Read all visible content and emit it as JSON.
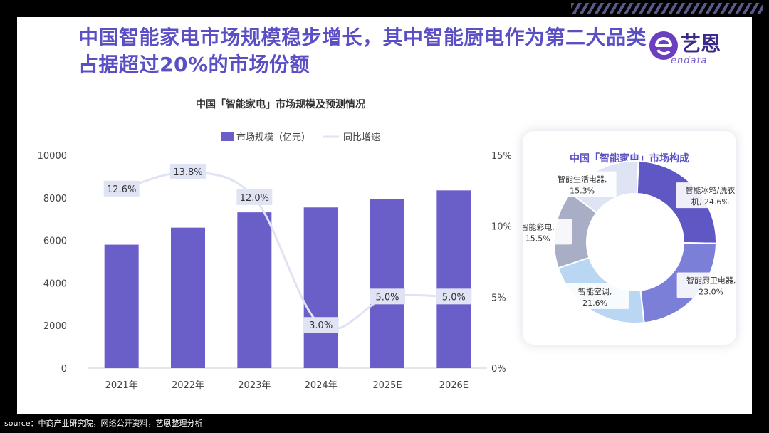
{
  "header": {
    "title": "中国智能家电市场规模稳步增长，其中智能厨电作为第二大品类占据超过20%的市场份额",
    "logo_text": "艺恩",
    "logo_sub": "endata"
  },
  "footer": {
    "source": "source：中商产业研究院，网络公开资料，艺恩整理分析"
  },
  "colors": {
    "bar": "#6a5fc9",
    "line": "#dfe3f3",
    "title": "#5b4fc4"
  },
  "chart_data": [
    {
      "type": "bar",
      "title": "中国「智能家电」市场规模及预测情况",
      "categories": [
        "2021年",
        "2022年",
        "2023年",
        "2024年",
        "2025E",
        "2026E"
      ],
      "legend": [
        "市场规模（亿元）",
        "同比增速"
      ],
      "series": [
        {
          "name": "市场规模（亿元）",
          "type": "bar",
          "values": [
            5800,
            6600,
            7320,
            7550,
            7950,
            8350
          ]
        },
        {
          "name": "同比增速",
          "type": "line",
          "axis": "right",
          "values": [
            12.6,
            13.8,
            12.0,
            3.0,
            5.0,
            5.0
          ],
          "labels": [
            "12.6%",
            "13.8%",
            "12.0%",
            "3.0%",
            "5.0%",
            "5.0%"
          ]
        }
      ],
      "ylim": [
        0,
        10000
      ],
      "yticks": [
        "0",
        "2000",
        "4000",
        "6000",
        "8000",
        "10000"
      ],
      "y2lim": [
        0,
        15
      ],
      "y2ticks": [
        "0%",
        "5%",
        "10%",
        "15%"
      ]
    },
    {
      "type": "pie",
      "title": "中国「智能家电」市场构成",
      "categories": [
        "智能冰箱/洗衣机",
        "智能厨卫电器",
        "智能空调",
        "智能彩电",
        "智能生活电器"
      ],
      "values": [
        24.6,
        23.0,
        21.6,
        15.5,
        15.3
      ],
      "labels": [
        [
          "智能冰箱/洗衣",
          "机, 24.6%"
        ],
        [
          "智能厨卫电器,",
          "23.0%"
        ],
        [
          "智能空调,",
          "21.6%"
        ],
        [
          "智能彩电,",
          "15.5%"
        ],
        [
          "智能生活电器,",
          "15.3%"
        ]
      ],
      "colors": [
        "#5e57c4",
        "#7b7fd8",
        "#b9d6f3",
        "#a8aec6",
        "#dfe4f5"
      ]
    }
  ]
}
